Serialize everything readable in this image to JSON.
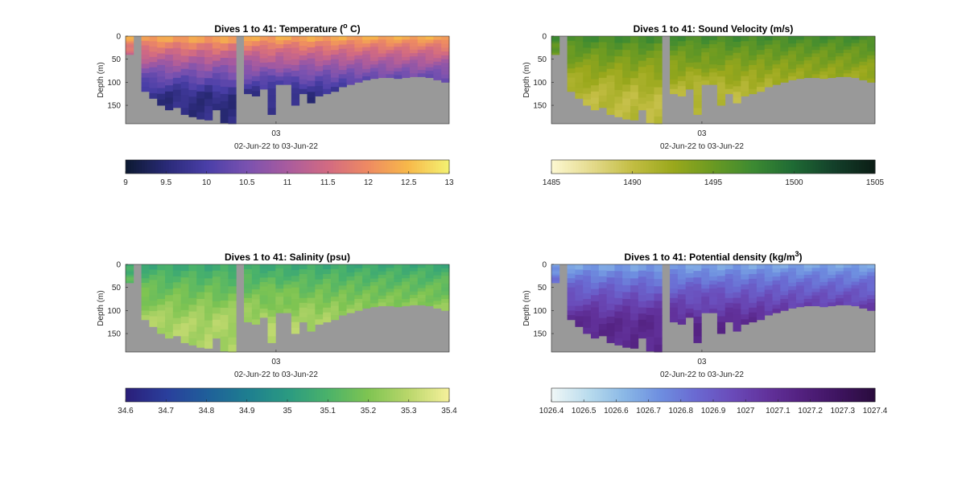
{
  "chart_data": [
    {
      "type": "heatmap",
      "title": "Dives 1 to 41: Temperature (",
      "title_sup": "o",
      "title_end": " C)",
      "ylabel": "Depth (m)",
      "yticks": [
        "0",
        "50",
        "100",
        "150"
      ],
      "ylim": [
        0,
        190
      ],
      "xticks": [
        "03"
      ],
      "xlabel": "02-Jun-22 to 03-Jun-22",
      "colorbar": {
        "range": [
          9,
          13
        ],
        "ticks": [
          "9",
          "9.5",
          "10",
          "10.5",
          "11",
          "11.5",
          "12",
          "12.5",
          "13"
        ],
        "colors": [
          "#0d1a33",
          "#2a2a78",
          "#4a3fa8",
          "#7a52b0",
          "#a95b9e",
          "#d26a82",
          "#ee8a62",
          "#f7b84a",
          "#f4f070"
        ]
      },
      "surface_value": 12.5,
      "bottom_value": 9.6
    },
    {
      "type": "heatmap",
      "title": "Dives 1 to 41: Sound Velocity (m/s)",
      "title_sup": "",
      "title_end": "",
      "ylabel": "Depth (m)",
      "yticks": [
        "0",
        "50",
        "100",
        "150"
      ],
      "ylim": [
        0,
        190
      ],
      "xticks": [
        "03"
      ],
      "xlabel": "02-Jun-22 to 03-Jun-22",
      "colorbar": {
        "range": [
          1485,
          1505
        ],
        "ticks": [
          "1485",
          "1490",
          "1495",
          "1500",
          "1505"
        ],
        "colors": [
          "#fcf7d0",
          "#e3d98a",
          "#c2bd42",
          "#9aa81c",
          "#6a9a22",
          "#3c8a32",
          "#1f6a34",
          "#13402a",
          "#0c1e16"
        ]
      },
      "surface_value": 1497.5,
      "bottom_value": 1490.5
    },
    {
      "type": "heatmap",
      "title": "Dives 1 to 41: Salinity (psu)",
      "title_sup": "",
      "title_end": "",
      "ylabel": "Depth (m)",
      "yticks": [
        "0",
        "50",
        "100",
        "150"
      ],
      "ylim": [
        0,
        190
      ],
      "xticks": [
        "03"
      ],
      "xlabel": "02-Jun-22 to 03-Jun-22",
      "colorbar": {
        "range": [
          34.6,
          35.4
        ],
        "ticks": [
          "34.6",
          "34.7",
          "34.8",
          "34.9",
          "35",
          "35.1",
          "35.2",
          "35.3",
          "35.4"
        ],
        "colors": [
          "#2a1f7a",
          "#2a3f9c",
          "#1f5f9a",
          "#1e7e90",
          "#2a9a82",
          "#4ab26a",
          "#7ec452",
          "#b8d66a",
          "#f4f09a"
        ]
      },
      "surface_value": 35.05,
      "bottom_value": 35.28
    },
    {
      "type": "heatmap",
      "title": "Dives 1 to 41: Potential density (kg/m",
      "title_sup": "3",
      "title_end": ")",
      "ylabel": "Depth (m)",
      "yticks": [
        "0",
        "50",
        "100",
        "150"
      ],
      "ylim": [
        0,
        190
      ],
      "xticks": [
        "03"
      ],
      "xlabel": "02-Jun-22 to 03-Jun-22",
      "colorbar": {
        "range": [
          1026.4,
          1027.4
        ],
        "ticks": [
          "1026.4",
          "1026.5",
          "1026.6",
          "1026.7",
          "1026.8",
          "1026.9",
          "1027",
          "1027.1",
          "1027.2",
          "1027.3",
          "1027.4"
        ],
        "colors": [
          "#eef6f6",
          "#b9dced",
          "#8ab8e6",
          "#6e8fe0",
          "#6a6ad2",
          "#6a4cba",
          "#62329c",
          "#52207e",
          "#3e1460",
          "#2a0c3e"
        ]
      },
      "surface_value": 1026.65,
      "bottom_value": 1027.12
    }
  ],
  "columns": {
    "count": 41,
    "bottom_depths": [
      40,
      95,
      120,
      135,
      150,
      160,
      155,
      170,
      175,
      180,
      182,
      160,
      188,
      190,
      190,
      125,
      130,
      115,
      170,
      105,
      105,
      150,
      125,
      145,
      130,
      125,
      120,
      110,
      105,
      100,
      95,
      92,
      90,
      90,
      92,
      90,
      88,
      88,
      90,
      95,
      100
    ],
    "gap_columns": [
      1,
      14
    ],
    "gap_colors": [
      "#999999"
    ]
  },
  "colors": {
    "background": "#999999",
    "axes_text": "#262626"
  }
}
